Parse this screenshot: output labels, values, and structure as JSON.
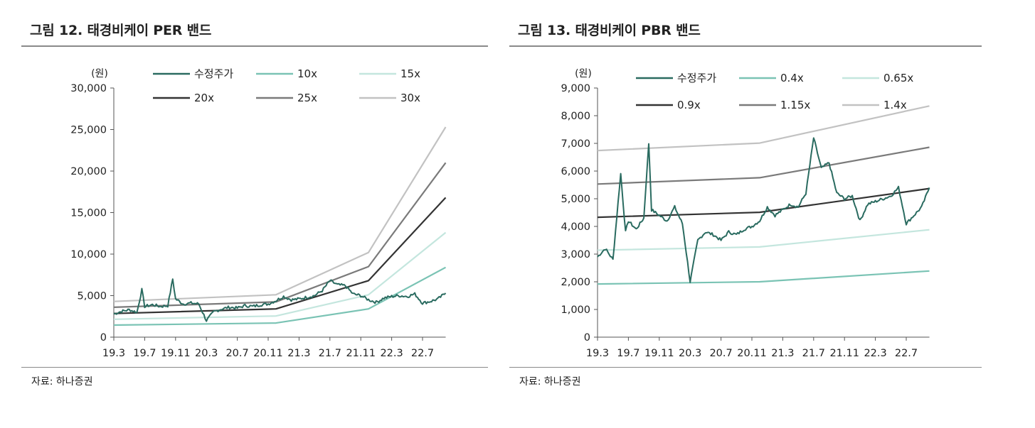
{
  "figures": [
    {
      "title": "그림 12. 태경비케이 PER 밴드",
      "source": "자료: 하나증권",
      "chart_data": {
        "type": "line",
        "title": "그림 12. 태경비케이 PER 밴드",
        "unit_label": "(원)",
        "x_ticks": [
          "19.3",
          "19.7",
          "19.11",
          "20.3",
          "20.7",
          "20.11",
          "21.3",
          "21.7",
          "21.11",
          "22.3",
          "22.7"
        ],
        "y_ticks": [
          "30,000",
          "25,000",
          "20,000",
          "15,000",
          "10,000",
          "5,000",
          "0"
        ],
        "ylim": [
          0,
          30000
        ],
        "x_months_range": [
          "2019-03",
          "2022-10"
        ],
        "legend": "top",
        "series": [
          {
            "name": "수정주가",
            "color": "#2a6b60",
            "kind": "price",
            "points": [
              [
                "2019-03",
                2800
              ],
              [
                "2019-04",
                3100
              ],
              [
                "2019-05",
                3300
              ],
              [
                "2019-06",
                3000
              ],
              [
                "2019-06-20",
                5700
              ],
              [
                "2019-07",
                3700
              ],
              [
                "2019-08",
                3900
              ],
              [
                "2019-09",
                3700
              ],
              [
                "2019-10",
                3800
              ],
              [
                "2019-10-20",
                7000
              ],
              [
                "2019-11",
                4600
              ],
              [
                "2019-12",
                4000
              ],
              [
                "2020-01",
                4100
              ],
              [
                "2020-02",
                4000
              ],
              [
                "2020-03",
                2000
              ],
              [
                "2020-04",
                3100
              ],
              [
                "2020-05",
                3400
              ],
              [
                "2020-06",
                3600
              ],
              [
                "2020-07",
                3500
              ],
              [
                "2020-08",
                3800
              ],
              [
                "2020-09",
                3700
              ],
              [
                "2020-10",
                3900
              ],
              [
                "2020-11",
                4000
              ],
              [
                "2020-12",
                4400
              ],
              [
                "2021-01",
                4900
              ],
              [
                "2021-02",
                4500
              ],
              [
                "2021-03",
                4600
              ],
              [
                "2021-04",
                4800
              ],
              [
                "2021-05",
                5000
              ],
              [
                "2021-06",
                5600
              ],
              [
                "2021-07",
                6800
              ],
              [
                "2021-08",
                6300
              ],
              [
                "2021-09",
                6200
              ],
              [
                "2021-10",
                5200
              ],
              [
                "2021-11",
                5000
              ],
              [
                "2021-12",
                4500
              ],
              [
                "2022-01",
                4200
              ],
              [
                "2022-02",
                4700
              ],
              [
                "2022-03",
                4900
              ],
              [
                "2022-04",
                5000
              ],
              [
                "2022-05",
                4900
              ],
              [
                "2022-06",
                5200
              ],
              [
                "2022-07",
                4100
              ],
              [
                "2022-08",
                4300
              ],
              [
                "2022-09",
                4600
              ],
              [
                "2022-10",
                5300
              ]
            ]
          },
          {
            "name": "10x",
            "color": "#7ac3b4",
            "kind": "band",
            "points": [
              [
                "2019-03",
                1450
              ],
              [
                "2020-12",
                1700
              ],
              [
                "2021-12",
                3400
              ],
              [
                "2022-10",
                8400
              ]
            ]
          },
          {
            "name": "15x",
            "color": "#c4e6de",
            "kind": "band",
            "points": [
              [
                "2019-03",
                2150
              ],
              [
                "2020-12",
                2550
              ],
              [
                "2021-12",
                5100
              ],
              [
                "2022-10",
                12600
              ]
            ]
          },
          {
            "name": "20x",
            "color": "#333333",
            "kind": "band",
            "points": [
              [
                "2019-03",
                2850
              ],
              [
                "2020-12",
                3400
              ],
              [
                "2021-12",
                6800
              ],
              [
                "2022-10",
                16800
              ]
            ]
          },
          {
            "name": "25x",
            "color": "#7a7a7a",
            "kind": "band",
            "points": [
              [
                "2019-03",
                3600
              ],
              [
                "2020-12",
                4250
              ],
              [
                "2021-12",
                8500
              ],
              [
                "2022-10",
                21000
              ]
            ]
          },
          {
            "name": "30x",
            "color": "#c2c2c2",
            "kind": "band",
            "points": [
              [
                "2019-03",
                4300
              ],
              [
                "2020-12",
                5100
              ],
              [
                "2021-12",
                10200
              ],
              [
                "2022-10",
                25300
              ]
            ]
          }
        ]
      }
    },
    {
      "title": "그림 13. 태경비케이 PBR 밴드",
      "source": "자료: 하나증권",
      "chart_data": {
        "type": "line",
        "title": "그림 13. 태경비케이 PBR 밴드",
        "unit_label": "(원)",
        "x_ticks": [
          "19.3",
          "19.7",
          "19.11",
          "20.3",
          "20.7",
          "20.11",
          "21.3",
          "21.7",
          "21.11",
          "22.3",
          "22.7"
        ],
        "y_ticks": [
          "9,000",
          "8,000",
          "7,000",
          "6,000",
          "5,000",
          "4,000",
          "3,000",
          "2,000",
          "1,000",
          "0"
        ],
        "ylim": [
          0,
          9000
        ],
        "x_months_range": [
          "2019-03",
          "2022-10"
        ],
        "legend": "top",
        "series": [
          {
            "name": "수정주가",
            "color": "#2a6b60",
            "kind": "price",
            "points": [
              [
                "2019-03",
                2900
              ],
              [
                "2019-04",
                3200
              ],
              [
                "2019-05",
                2800
              ],
              [
                "2019-06",
                5900
              ],
              [
                "2019-06-20",
                3800
              ],
              [
                "2019-07",
                4200
              ],
              [
                "2019-08",
                3900
              ],
              [
                "2019-09",
                4300
              ],
              [
                "2019-09-20",
                7000
              ],
              [
                "2019-10",
                4600
              ],
              [
                "2019-11",
                4400
              ],
              [
                "2019-12",
                4200
              ],
              [
                "2020-01",
                4700
              ],
              [
                "2020-02",
                4100
              ],
              [
                "2020-03",
                2000
              ],
              [
                "2020-04",
                3500
              ],
              [
                "2020-05",
                3800
              ],
              [
                "2020-06",
                3700
              ],
              [
                "2020-07",
                3500
              ],
              [
                "2020-08",
                3800
              ],
              [
                "2020-09",
                3700
              ],
              [
                "2020-10",
                3900
              ],
              [
                "2020-11",
                4000
              ],
              [
                "2020-12",
                4200
              ],
              [
                "2021-01",
                4700
              ],
              [
                "2021-02",
                4400
              ],
              [
                "2021-03",
                4600
              ],
              [
                "2021-04",
                4800
              ],
              [
                "2021-05",
                4700
              ],
              [
                "2021-06",
                5200
              ],
              [
                "2021-07",
                7200
              ],
              [
                "2021-08",
                6100
              ],
              [
                "2021-09",
                6300
              ],
              [
                "2021-10",
                5200
              ],
              [
                "2021-11",
                5000
              ],
              [
                "2021-12",
                5100
              ],
              [
                "2022-01",
                4200
              ],
              [
                "2022-02",
                4800
              ],
              [
                "2022-03",
                4900
              ],
              [
                "2022-04",
                5000
              ],
              [
                "2022-05",
                5100
              ],
              [
                "2022-06",
                5400
              ],
              [
                "2022-07",
                4100
              ],
              [
                "2022-08",
                4400
              ],
              [
                "2022-09",
                4700
              ],
              [
                "2022-10",
                5400
              ]
            ]
          },
          {
            "name": "0.4x",
            "color": "#7ac3b4",
            "kind": "band",
            "points": [
              [
                "2019-03",
                1920
              ],
              [
                "2020-12",
                2000
              ],
              [
                "2022-10",
                2390
              ]
            ]
          },
          {
            "name": "0.65x",
            "color": "#c4e6de",
            "kind": "band",
            "points": [
              [
                "2019-03",
                3140
              ],
              [
                "2020-12",
                3260
              ],
              [
                "2022-10",
                3880
              ]
            ]
          },
          {
            "name": "0.9x",
            "color": "#333333",
            "kind": "band",
            "points": [
              [
                "2019-03",
                4330
              ],
              [
                "2020-12",
                4510
              ],
              [
                "2022-10",
                5370
              ]
            ]
          },
          {
            "name": "1.15x",
            "color": "#7a7a7a",
            "kind": "band",
            "points": [
              [
                "2019-03",
                5530
              ],
              [
                "2020-12",
                5760
              ],
              [
                "2022-10",
                6860
              ]
            ]
          },
          {
            "name": "1.4x",
            "color": "#c2c2c2",
            "kind": "band",
            "points": [
              [
                "2019-03",
                6740
              ],
              [
                "2020-12",
                7010
              ],
              [
                "2022-10",
                8350
              ]
            ]
          }
        ]
      }
    }
  ]
}
